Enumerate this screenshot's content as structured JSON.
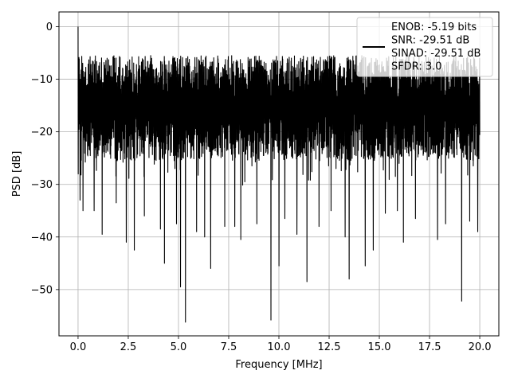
{
  "chart_data": {
    "type": "line",
    "title": "",
    "xlabel": "Frequency [MHz]",
    "ylabel": "PSD [dB]",
    "xlim": [
      -0.95,
      20.95
    ],
    "ylim": [
      -58.8,
      2.8
    ],
    "x_ticks": [
      0.0,
      2.5,
      5.0,
      7.5,
      10.0,
      12.5,
      15.0,
      17.5,
      20.0
    ],
    "x_tick_labels": [
      "0.0",
      "2.5",
      "5.0",
      "7.5",
      "10.0",
      "12.5",
      "15.0",
      "17.5",
      "20.0"
    ],
    "y_ticks": [
      0,
      -10,
      -20,
      -30,
      -40,
      -50
    ],
    "y_tick_labels": [
      "0",
      "−10",
      "−20",
      "−30",
      "−40",
      "−50"
    ],
    "grid": true,
    "legend_position": "top-right",
    "series": [
      {
        "color": "#000000",
        "x_range": [
          0.0,
          20.0
        ],
        "peak": {
          "x": 0.0,
          "y": 0.0
        },
        "noise_floor_upper": -5.5,
        "noise_floor_lower": -29.5,
        "deep_nulls": [
          {
            "x": 0.1,
            "y": -33.0
          },
          {
            "x": 0.25,
            "y": -35.0
          },
          {
            "x": 0.8,
            "y": -35.0
          },
          {
            "x": 1.2,
            "y": -39.5
          },
          {
            "x": 1.9,
            "y": -33.5
          },
          {
            "x": 2.4,
            "y": -41.0
          },
          {
            "x": 2.8,
            "y": -42.5
          },
          {
            "x": 3.3,
            "y": -36.0
          },
          {
            "x": 4.1,
            "y": -38.5
          },
          {
            "x": 4.3,
            "y": -45.0
          },
          {
            "x": 4.9,
            "y": -37.5
          },
          {
            "x": 5.1,
            "y": -49.5
          },
          {
            "x": 5.35,
            "y": -56.2
          },
          {
            "x": 5.9,
            "y": -39.0
          },
          {
            "x": 6.3,
            "y": -40.0
          },
          {
            "x": 6.6,
            "y": -46.0
          },
          {
            "x": 7.3,
            "y": -38.0
          },
          {
            "x": 7.8,
            "y": -38.0
          },
          {
            "x": 8.1,
            "y": -40.5
          },
          {
            "x": 8.9,
            "y": -37.5
          },
          {
            "x": 9.6,
            "y": -55.8
          },
          {
            "x": 10.0,
            "y": -45.5
          },
          {
            "x": 10.3,
            "y": -36.5
          },
          {
            "x": 10.9,
            "y": -39.5
          },
          {
            "x": 11.4,
            "y": -48.5
          },
          {
            "x": 12.0,
            "y": -38.0
          },
          {
            "x": 12.6,
            "y": -35.0
          },
          {
            "x": 13.3,
            "y": -40.0
          },
          {
            "x": 13.5,
            "y": -48.0
          },
          {
            "x": 14.3,
            "y": -45.5
          },
          {
            "x": 14.7,
            "y": -42.5
          },
          {
            "x": 15.3,
            "y": -35.5
          },
          {
            "x": 15.9,
            "y": -35.0
          },
          {
            "x": 16.2,
            "y": -41.0
          },
          {
            "x": 16.8,
            "y": -36.5
          },
          {
            "x": 17.9,
            "y": -40.5
          },
          {
            "x": 18.3,
            "y": -37.5
          },
          {
            "x": 19.1,
            "y": -52.2
          },
          {
            "x": 19.5,
            "y": -37.0
          },
          {
            "x": 19.9,
            "y": -39.0
          }
        ]
      }
    ],
    "legend": {
      "lines": [
        "ENOB: -5.19 bits",
        "SNR: -29.51 dB",
        "SINAD: -29.51 dB",
        "SFDR: 3.0"
      ]
    }
  }
}
